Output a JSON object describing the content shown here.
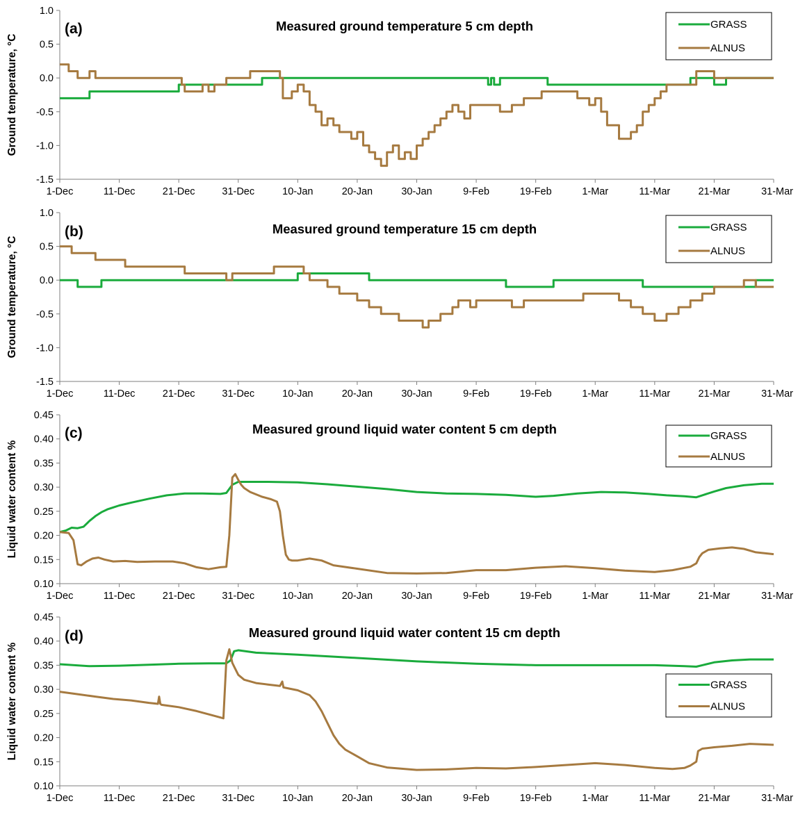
{
  "colors": {
    "grass": "#1aab3c",
    "alnus": "#a67a40",
    "axis": "#7f7f7f"
  },
  "chart_data": [
    {
      "type": "line",
      "panel_label": "(a)",
      "title": "Measured ground temperature  5 cm depth",
      "ylabel": "Ground temperature, °C",
      "xlabel": "",
      "xlim": [
        0,
        120
      ],
      "ylim": [
        -1.5,
        1.0
      ],
      "ytick_step": 0.5,
      "ytick_decimals": 1,
      "xtick_positions": [
        0,
        10,
        20,
        30,
        40,
        50,
        60,
        70,
        80,
        90,
        100,
        110,
        120
      ],
      "xtick_labels": [
        "1-Dec",
        "11-Dec",
        "21-Dec",
        "31-Dec",
        "10-Jan",
        "20-Jan",
        "30-Jan",
        "9-Feb",
        "19-Feb",
        "1-Mar",
        "11-Mar",
        "21-Mar",
        "31-Mar"
      ],
      "grid": false,
      "legend": "top-right",
      "series": [
        {
          "name": "GRASS",
          "step": true,
          "x": [
            0,
            5,
            20,
            34,
            72,
            72.5,
            73,
            74,
            82,
            106,
            110,
            112,
            120
          ],
          "y": [
            -0.3,
            -0.2,
            -0.1,
            0.0,
            -0.1,
            0.0,
            -0.1,
            0.0,
            -0.1,
            0.0,
            -0.1,
            0.0,
            0.0
          ]
        },
        {
          "name": "ALNUS",
          "step": true,
          "x": [
            0,
            1.5,
            3,
            5,
            6,
            20.5,
            21,
            24,
            25,
            26,
            28,
            32,
            37,
            37.5,
            39,
            40,
            41,
            42,
            43,
            44,
            45,
            46,
            47,
            49,
            50,
            51,
            52,
            53,
            54,
            55,
            56,
            57,
            58,
            59,
            60,
            61,
            62,
            63,
            64,
            65,
            66,
            67,
            68,
            69,
            70,
            74,
            76,
            78,
            81,
            83,
            87,
            89,
            90,
            91,
            92,
            94,
            95,
            96,
            97,
            98,
            99,
            100,
            101,
            102,
            107,
            108,
            110,
            115,
            120
          ],
          "y": [
            0.2,
            0.1,
            0.0,
            0.1,
            0.0,
            -0.1,
            -0.2,
            -0.1,
            -0.2,
            -0.1,
            0.0,
            0.1,
            0.0,
            -0.3,
            -0.2,
            -0.1,
            -0.2,
            -0.4,
            -0.5,
            -0.7,
            -0.6,
            -0.7,
            -0.8,
            -0.9,
            -0.8,
            -1.0,
            -1.1,
            -1.2,
            -1.3,
            -1.1,
            -1.0,
            -1.2,
            -1.1,
            -1.2,
            -1.0,
            -0.9,
            -0.8,
            -0.7,
            -0.6,
            -0.5,
            -0.4,
            -0.5,
            -0.6,
            -0.4,
            -0.4,
            -0.5,
            -0.4,
            -0.3,
            -0.2,
            -0.2,
            -0.3,
            -0.4,
            -0.3,
            -0.5,
            -0.7,
            -0.9,
            -0.9,
            -0.8,
            -0.7,
            -0.5,
            -0.4,
            -0.3,
            -0.2,
            -0.1,
            0.1,
            0.1,
            0.0,
            0.0,
            0.0
          ]
        }
      ]
    },
    {
      "type": "line",
      "panel_label": "(b)",
      "title": "Measured ground temperature  15 cm depth",
      "ylabel": "Ground temperature, °C",
      "xlabel": "",
      "xlim": [
        0,
        120
      ],
      "ylim": [
        -1.5,
        1.0
      ],
      "ytick_step": 0.5,
      "ytick_decimals": 1,
      "xtick_positions": [
        0,
        10,
        20,
        30,
        40,
        50,
        60,
        70,
        80,
        90,
        100,
        110,
        120
      ],
      "xtick_labels": [
        "1-Dec",
        "11-Dec",
        "21-Dec",
        "31-Dec",
        "10-Jan",
        "20-Jan",
        "30-Jan",
        "9-Feb",
        "19-Feb",
        "1-Mar",
        "11-Mar",
        "21-Mar",
        "31-Mar"
      ],
      "grid": false,
      "legend": "top-right",
      "series": [
        {
          "name": "GRASS",
          "step": true,
          "x": [
            0,
            3,
            7,
            40,
            52,
            75,
            83,
            87,
            98,
            115,
            117,
            120
          ],
          "y": [
            0.0,
            -0.1,
            0.0,
            0.1,
            0.0,
            -0.1,
            0.0,
            0.0,
            -0.1,
            -0.1,
            0.0,
            0.0
          ]
        },
        {
          "name": "ALNUS",
          "step": true,
          "x": [
            0,
            2,
            6,
            11,
            14,
            21,
            28,
            29,
            33,
            36,
            41,
            42,
            45,
            47,
            50,
            52,
            54,
            57,
            61,
            62,
            64,
            66,
            67,
            69,
            70,
            76,
            78,
            82,
            88,
            94,
            96,
            98,
            100,
            102,
            104,
            106,
            108,
            110,
            115,
            117,
            120
          ],
          "y": [
            0.5,
            0.4,
            0.3,
            0.2,
            0.2,
            0.1,
            0.0,
            0.1,
            0.1,
            0.2,
            0.1,
            0.0,
            -0.1,
            -0.2,
            -0.3,
            -0.4,
            -0.5,
            -0.6,
            -0.7,
            -0.6,
            -0.5,
            -0.4,
            -0.3,
            -0.4,
            -0.3,
            -0.4,
            -0.3,
            -0.3,
            -0.2,
            -0.3,
            -0.4,
            -0.5,
            -0.6,
            -0.5,
            -0.4,
            -0.3,
            -0.2,
            -0.1,
            0.0,
            -0.1,
            -0.1
          ]
        }
      ]
    },
    {
      "type": "line",
      "panel_label": "(c)",
      "title": "Measured ground liquid water content  5 cm depth",
      "ylabel": "Liquid  water content  %",
      "xlabel": "",
      "xlim": [
        0,
        120
      ],
      "ylim": [
        0.1,
        0.45
      ],
      "ytick_step": 0.05,
      "ytick_decimals": 2,
      "xtick_positions": [
        0,
        10,
        20,
        30,
        40,
        50,
        60,
        70,
        80,
        90,
        100,
        110,
        120
      ],
      "xtick_labels": [
        "1-Dec",
        "11-Dec",
        "21-Dec",
        "31-Dec",
        "10-Jan",
        "20-Jan",
        "30-Jan",
        "9-Feb",
        "19-Feb",
        "1-Mar",
        "11-Mar",
        "21-Mar",
        "31-Mar"
      ],
      "grid": false,
      "legend": "top-right",
      "series": [
        {
          "name": "GRASS",
          "step": false,
          "x": [
            0,
            1,
            2,
            3,
            4,
            5,
            6,
            7,
            8,
            9,
            10,
            12,
            15,
            18,
            21,
            24,
            27,
            28,
            29,
            30,
            35,
            40,
            45,
            50,
            55,
            60,
            65,
            70,
            75,
            80,
            83,
            87,
            91,
            95,
            99,
            102,
            105,
            107,
            108,
            110,
            112,
            115,
            118,
            120
          ],
          "y": [
            0.207,
            0.21,
            0.216,
            0.215,
            0.218,
            0.23,
            0.24,
            0.248,
            0.254,
            0.258,
            0.262,
            0.268,
            0.276,
            0.283,
            0.287,
            0.287,
            0.286,
            0.288,
            0.305,
            0.311,
            0.311,
            0.31,
            0.306,
            0.301,
            0.296,
            0.29,
            0.287,
            0.286,
            0.284,
            0.28,
            0.282,
            0.287,
            0.29,
            0.289,
            0.286,
            0.283,
            0.281,
            0.279,
            0.283,
            0.291,
            0.298,
            0.304,
            0.307,
            0.307
          ]
        },
        {
          "name": "ALNUS",
          "step": false,
          "x": [
            0,
            1.5,
            2.3,
            3,
            3.6,
            4.5,
            5.5,
            6.5,
            7.5,
            9,
            11,
            13,
            16,
            19,
            21,
            23,
            25,
            27,
            28,
            28.5,
            29,
            29.5,
            30,
            30.5,
            31,
            32,
            34,
            35.5,
            36.5,
            37,
            37.5,
            38,
            38.5,
            39,
            40,
            42,
            44,
            46,
            50,
            55,
            60,
            65,
            70,
            75,
            80,
            85,
            90,
            95,
            100,
            103,
            106,
            107,
            107.5,
            108,
            109,
            111,
            113,
            115,
            117,
            120
          ],
          "y": [
            0.207,
            0.205,
            0.19,
            0.14,
            0.138,
            0.146,
            0.152,
            0.154,
            0.15,
            0.146,
            0.147,
            0.145,
            0.146,
            0.146,
            0.142,
            0.134,
            0.13,
            0.134,
            0.135,
            0.2,
            0.32,
            0.327,
            0.315,
            0.305,
            0.298,
            0.29,
            0.28,
            0.275,
            0.27,
            0.25,
            0.2,
            0.16,
            0.15,
            0.148,
            0.148,
            0.152,
            0.148,
            0.138,
            0.131,
            0.122,
            0.121,
            0.122,
            0.128,
            0.128,
            0.133,
            0.136,
            0.132,
            0.127,
            0.124,
            0.128,
            0.135,
            0.142,
            0.155,
            0.163,
            0.17,
            0.173,
            0.175,
            0.172,
            0.165,
            0.161
          ]
        }
      ]
    },
    {
      "type": "line",
      "panel_label": "(d)",
      "title": "Measured ground liquid water content  15 cm depth",
      "ylabel": "Liquid  water content  %",
      "xlabel": "",
      "xlim": [
        0,
        120
      ],
      "ylim": [
        0.1,
        0.45
      ],
      "ytick_step": 0.05,
      "ytick_decimals": 2,
      "xtick_positions": [
        0,
        10,
        20,
        30,
        40,
        50,
        60,
        70,
        80,
        90,
        100,
        110,
        120
      ],
      "xtick_labels": [
        "1-Dec",
        "11-Dec",
        "21-Dec",
        "31-Dec",
        "10-Jan",
        "20-Jan",
        "30-Jan",
        "9-Feb",
        "19-Feb",
        "1-Mar",
        "11-Mar",
        "21-Mar",
        "31-Mar"
      ],
      "grid": false,
      "legend": "right",
      "series": [
        {
          "name": "GRASS",
          "step": false,
          "x": [
            0,
            5,
            10,
            15,
            20,
            25,
            28,
            28.7,
            29.3,
            30,
            33,
            40,
            50,
            60,
            70,
            80,
            90,
            100,
            105,
            107,
            108,
            110,
            113,
            116,
            120
          ],
          "y": [
            0.352,
            0.348,
            0.349,
            0.351,
            0.353,
            0.354,
            0.354,
            0.36,
            0.379,
            0.381,
            0.376,
            0.372,
            0.365,
            0.358,
            0.353,
            0.35,
            0.35,
            0.35,
            0.348,
            0.347,
            0.35,
            0.356,
            0.36,
            0.362,
            0.362
          ]
        },
        {
          "name": "ALNUS",
          "step": false,
          "x": [
            0,
            3,
            6,
            9,
            12,
            15,
            16.5,
            16.7,
            16.9,
            17.1,
            20,
            23,
            26,
            27.5,
            28,
            28.5,
            29,
            29.4,
            30,
            31,
            33,
            35,
            37,
            37.4,
            37.6,
            40,
            42,
            43,
            44,
            45,
            46,
            47,
            48,
            50,
            52,
            55,
            60,
            65,
            70,
            75,
            80,
            85,
            90,
            95,
            100,
            103,
            105,
            106,
            107,
            107.3,
            108,
            110,
            113,
            116,
            120
          ],
          "y": [
            0.295,
            0.29,
            0.285,
            0.28,
            0.277,
            0.272,
            0.27,
            0.285,
            0.27,
            0.268,
            0.263,
            0.255,
            0.245,
            0.24,
            0.36,
            0.383,
            0.355,
            0.345,
            0.33,
            0.32,
            0.313,
            0.31,
            0.307,
            0.316,
            0.304,
            0.298,
            0.288,
            0.275,
            0.255,
            0.23,
            0.205,
            0.187,
            0.175,
            0.161,
            0.147,
            0.138,
            0.133,
            0.134,
            0.137,
            0.136,
            0.139,
            0.143,
            0.147,
            0.143,
            0.137,
            0.135,
            0.137,
            0.142,
            0.15,
            0.172,
            0.177,
            0.18,
            0.183,
            0.187,
            0.185
          ]
        }
      ]
    }
  ]
}
